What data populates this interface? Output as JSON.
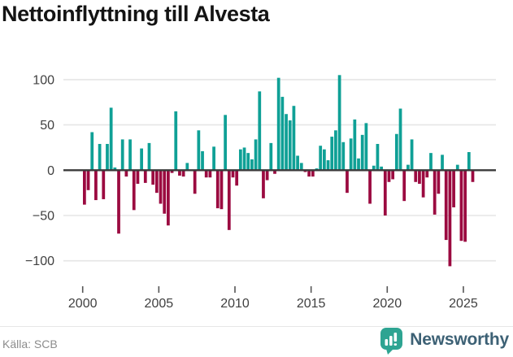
{
  "title": "Nettoinflyttning till Alvesta",
  "source": "Källa: SCB",
  "brand": {
    "name": "Newsworthy",
    "icon": "newsworthy-bubble-chart-icon",
    "bubble_color": "#2ea492",
    "text_color": "#3d6175"
  },
  "chart_data": {
    "type": "bar",
    "title": "Nettoinflyttning till Alvesta",
    "frequency": "quarterly",
    "start_year": 2000,
    "start_quarter": 1,
    "values": [
      -38,
      -22,
      42,
      -33,
      29,
      -32,
      29,
      69,
      3,
      -70,
      34,
      -7,
      34,
      -44,
      -15,
      24,
      -14,
      30,
      -16,
      -25,
      -37,
      -48,
      -61,
      -3,
      65,
      -6,
      -7,
      8,
      0,
      -26,
      44,
      21,
      -8,
      -8,
      26,
      -42,
      -43,
      61,
      -66,
      -8,
      -17,
      23,
      25,
      19,
      12,
      34,
      87,
      -31,
      -11,
      30,
      -4,
      102,
      81,
      62,
      55,
      71,
      16,
      8,
      -2,
      -7,
      -7,
      2,
      27,
      23,
      11,
      37,
      44,
      105,
      31,
      -25,
      35,
      56,
      13,
      39,
      52,
      -37,
      5,
      29,
      4,
      -50,
      -13,
      -10,
      40,
      68,
      -34,
      6,
      34,
      -13,
      -15,
      -30,
      -8,
      19,
      -49,
      -26,
      17,
      -77,
      -106,
      -41,
      6,
      -78,
      -79,
      20,
      -13
    ],
    "xticks": [
      2000,
      2005,
      2010,
      2015,
      2020,
      2025
    ],
    "yticks": [
      100,
      50,
      0,
      -50,
      -100
    ],
    "ylim": [
      -120,
      112
    ],
    "grid": true,
    "legend": false,
    "positive_color": "#0fa096",
    "negative_color": "#9b0a40",
    "grid_color": "#e6e6e6",
    "zero_line_color": "#3a3a3a",
    "axis_text_color": "#404040",
    "tick_mark_color": "#555555"
  }
}
